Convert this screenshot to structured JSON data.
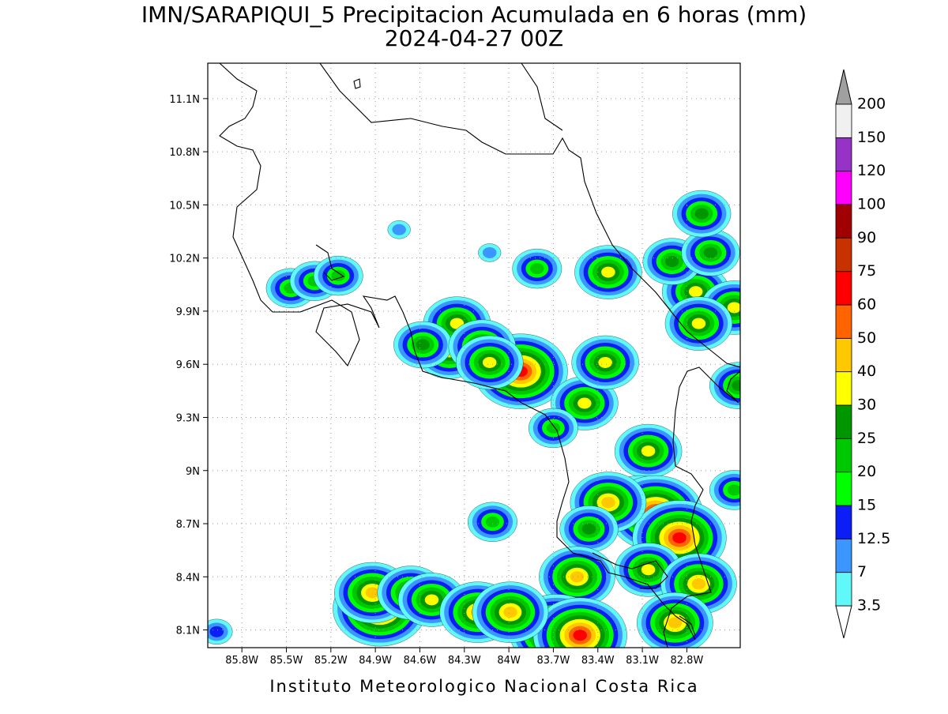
{
  "title": "IMN/SARAPIQUI_5 Precipitacion Acumulada en 6 horas (mm)",
  "subtitle": "2024-04-27 00Z",
  "footer": "Instituto Meteorologico Nacional Costa Rica",
  "map": {
    "xlim": [
      -86.03,
      -82.44
    ],
    "ylim": [
      8.0,
      11.3
    ],
    "grid": true,
    "xticks": [
      {
        "value": -85.8,
        "label": "85.8W"
      },
      {
        "value": -85.5,
        "label": "85.5W"
      },
      {
        "value": -85.2,
        "label": "85.2W"
      },
      {
        "value": -84.9,
        "label": "84.9W"
      },
      {
        "value": -84.6,
        "label": "84.6W"
      },
      {
        "value": -84.3,
        "label": "84.3W"
      },
      {
        "value": -84.0,
        "label": "84W"
      },
      {
        "value": -83.7,
        "label": "83.7W"
      },
      {
        "value": -83.4,
        "label": "83.4W"
      },
      {
        "value": -83.1,
        "label": "83.1W"
      },
      {
        "value": -82.8,
        "label": "82.8W"
      }
    ],
    "yticks": [
      {
        "value": 8.1,
        "label": "8.1N"
      },
      {
        "value": 8.4,
        "label": "8.4N"
      },
      {
        "value": 8.7,
        "label": "8.7N"
      },
      {
        "value": 9.0,
        "label": "9N"
      },
      {
        "value": 9.3,
        "label": "9.3N"
      },
      {
        "value": 9.6,
        "label": "9.6N"
      },
      {
        "value": 9.9,
        "label": "9.9N"
      },
      {
        "value": 10.2,
        "label": "10.2N"
      },
      {
        "value": 10.5,
        "label": "10.5N"
      },
      {
        "value": 10.8,
        "label": "10.8N"
      },
      {
        "value": 11.1,
        "label": "11.1N"
      }
    ],
    "cells": [
      {
        "lon": -83.33,
        "lat": 10.12,
        "peak": 30
      },
      {
        "lon": -82.74,
        "lat": 10.01,
        "peak": 30
      },
      {
        "lon": -82.9,
        "lat": 10.18,
        "peak": 25
      },
      {
        "lon": -82.64,
        "lat": 10.23,
        "peak": 25
      },
      {
        "lon": -82.48,
        "lat": 9.92,
        "peak": 30
      },
      {
        "lon": -82.72,
        "lat": 9.83,
        "peak": 30
      },
      {
        "lon": -83.81,
        "lat": 10.14,
        "peak": 20
      },
      {
        "lon": -84.13,
        "lat": 10.23,
        "peak": 7
      },
      {
        "lon": -83.92,
        "lat": 9.56,
        "peak": 60
      },
      {
        "lon": -84.4,
        "lat": 9.67,
        "peak": 30
      },
      {
        "lon": -84.35,
        "lat": 9.83,
        "peak": 30
      },
      {
        "lon": -84.58,
        "lat": 9.71,
        "peak": 25
      },
      {
        "lon": -84.18,
        "lat": 9.7,
        "peak": 30
      },
      {
        "lon": -84.13,
        "lat": 9.61,
        "peak": 30
      },
      {
        "lon": -83.49,
        "lat": 9.38,
        "peak": 30
      },
      {
        "lon": -83.35,
        "lat": 9.61,
        "peak": 30
      },
      {
        "lon": -83.06,
        "lat": 9.11,
        "peak": 30
      },
      {
        "lon": -83.12,
        "lat": 8.8,
        "peak": 40
      },
      {
        "lon": -83.01,
        "lat": 8.76,
        "peak": 60
      },
      {
        "lon": -82.85,
        "lat": 8.62,
        "peak": 60
      },
      {
        "lon": -83.33,
        "lat": 8.82,
        "peak": 40
      },
      {
        "lon": -83.46,
        "lat": 8.67,
        "peak": 25
      },
      {
        "lon": -83.54,
        "lat": 8.4,
        "peak": 40
      },
      {
        "lon": -83.68,
        "lat": 8.09,
        "peak": 60
      },
      {
        "lon": -83.52,
        "lat": 8.07,
        "peak": 60
      },
      {
        "lon": -83.06,
        "lat": 8.44,
        "peak": 30
      },
      {
        "lon": -82.72,
        "lat": 8.36,
        "peak": 40
      },
      {
        "lon": -82.88,
        "lat": 8.14,
        "peak": 40
      },
      {
        "lon": -84.87,
        "lat": 8.22,
        "peak": 60
      },
      {
        "lon": -84.92,
        "lat": 8.31,
        "peak": 40
      },
      {
        "lon": -84.66,
        "lat": 8.31,
        "peak": 30
      },
      {
        "lon": -84.52,
        "lat": 8.27,
        "peak": 30
      },
      {
        "lon": -84.21,
        "lat": 8.2,
        "peak": 40
      },
      {
        "lon": -83.99,
        "lat": 8.2,
        "peak": 40
      },
      {
        "lon": -85.47,
        "lat": 10.03,
        "peak": 20
      },
      {
        "lon": -85.31,
        "lat": 10.07,
        "peak": 20
      },
      {
        "lon": -85.15,
        "lat": 10.1,
        "peak": 20
      },
      {
        "lon": -84.11,
        "lat": 8.71,
        "peak": 20
      },
      {
        "lon": -85.97,
        "lat": 8.09,
        "peak": 12.5
      },
      {
        "lon": -84.74,
        "lat": 10.36,
        "peak": 7
      },
      {
        "lon": -82.7,
        "lat": 10.45,
        "peak": 25
      },
      {
        "lon": -82.45,
        "lat": 9.48,
        "peak": 25
      },
      {
        "lon": -82.48,
        "lat": 8.89,
        "peak": 20
      },
      {
        "lon": -83.7,
        "lat": 9.24,
        "peak": 20
      }
    ]
  },
  "colorbar": {
    "levels": [
      3.5,
      7,
      12.5,
      15,
      20,
      25,
      30,
      40,
      50,
      60,
      75,
      90,
      100,
      120,
      150,
      200
    ],
    "colors": [
      "#60f8f8",
      "#3c96ff",
      "#0a1ef5",
      "#00ff00",
      "#00c800",
      "#009600",
      "#ffff00",
      "#ffc800",
      "#ff6400",
      "#ff0000",
      "#c83200",
      "#a00000",
      "#ff00ff",
      "#9632c8",
      "#f0f0f0"
    ],
    "under_color": "#ffffff",
    "over_color": "#a0a0a0"
  }
}
